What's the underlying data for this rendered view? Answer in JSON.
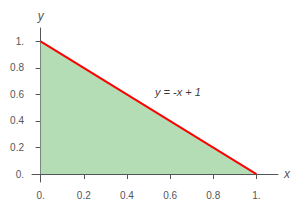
{
  "chart_data": {
    "type": "line",
    "xlabel": "x",
    "ylabel": "y",
    "xlim": [
      -0.04,
      1.1
    ],
    "ylim": [
      -0.06,
      1.1
    ],
    "xticks": [
      {
        "value": 0.0,
        "label": "0."
      },
      0.2,
      0.4,
      0.6,
      0.8,
      {
        "value": 1.0,
        "label": "1."
      }
    ],
    "yticks": [
      {
        "value": 0.0,
        "label": "0."
      },
      0.2,
      0.4,
      0.6,
      0.8,
      {
        "value": 1.0,
        "label": "1."
      }
    ],
    "grid": false,
    "series": [
      {
        "type": "fill",
        "color": "#b5ddb5",
        "x": [
          0,
          1,
          0
        ],
        "values": [
          0,
          0,
          1
        ]
      },
      {
        "type": "line",
        "color": "#ff0000",
        "x": [
          0,
          1
        ],
        "values": [
          1,
          0
        ]
      }
    ],
    "annotations": [
      {
        "text": "y = -x + 1",
        "x": 0.53,
        "y": 0.62
      }
    ]
  }
}
